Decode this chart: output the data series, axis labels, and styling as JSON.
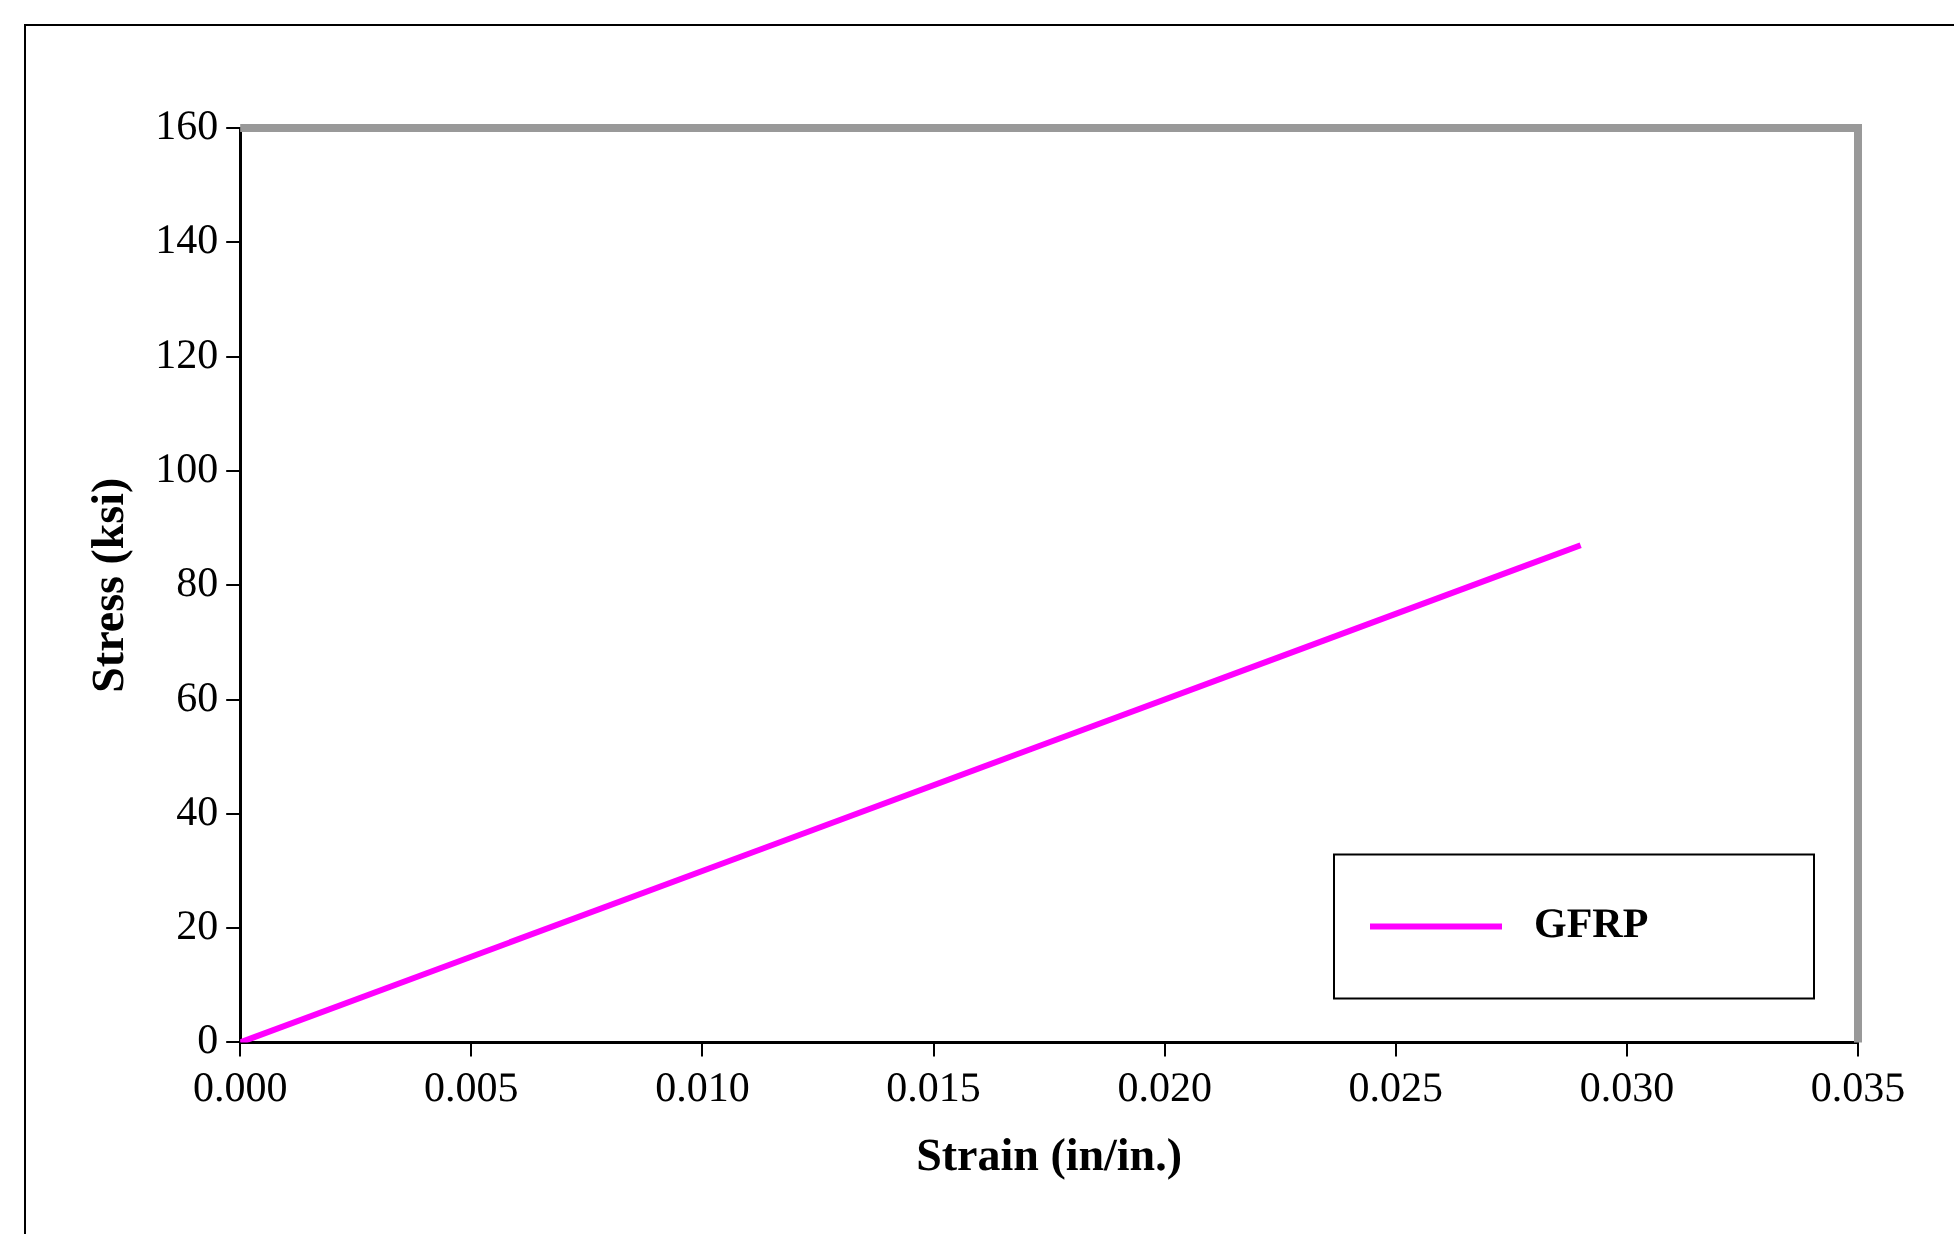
{
  "chart_data": {
    "type": "line",
    "xlabel": "Strain (in/in.)",
    "ylabel": "Stress (ksi)",
    "x": [
      0,
      0.029
    ],
    "series": [
      {
        "name": "GFRP",
        "color": "#ff00ff",
        "values": [
          0,
          87
        ]
      }
    ],
    "xlim": [
      0,
      0.035
    ],
    "xticks": [
      {
        "value": 0,
        "label": "0.000"
      },
      {
        "value": 0.005,
        "label": "0.005"
      },
      {
        "value": 0.01,
        "label": "0.010"
      },
      {
        "value": 0.015,
        "label": "0.015"
      },
      {
        "value": 0.02,
        "label": "0.020"
      },
      {
        "value": 0.025,
        "label": "0.025"
      },
      {
        "value": 0.03,
        "label": "0.030"
      },
      {
        "value": 0.035,
        "label": "0.035"
      }
    ],
    "ylim": [
      0,
      160
    ],
    "yticks": [
      0,
      20,
      40,
      60,
      80,
      100,
      120,
      140,
      160
    ],
    "grid": false,
    "legend": "bottom right",
    "marker": "none",
    "line_style": "solid"
  }
}
